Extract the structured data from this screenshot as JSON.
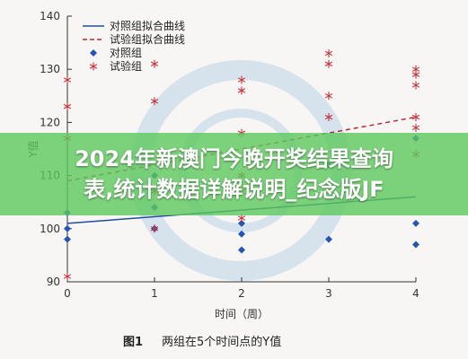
{
  "banner": {
    "line1": "2024年新澳门今晚开奖结果查询",
    "line2": "表,统计数据详解说明_纪念版JF"
  },
  "figure_caption": {
    "label": "图1",
    "text": "两组在5个时间点的Y值"
  },
  "chart_data": {
    "type": "scatter",
    "title": "",
    "xlabel": "时间（周）",
    "ylabel": "Y值",
    "xlim": [
      0,
      4
    ],
    "ylim": [
      90,
      140
    ],
    "x_ticks": [
      0,
      1,
      2,
      3,
      4
    ],
    "y_ticks": [
      90,
      100,
      110,
      120,
      130,
      140
    ],
    "grid": false,
    "legend_position": "top-left",
    "series": [
      {
        "name": "对照组拟合曲线",
        "kind": "line",
        "style": "solid",
        "color": "#1f4e9c",
        "x": [
          0,
          4
        ],
        "y": [
          101,
          106
        ]
      },
      {
        "name": "试验组拟合曲线",
        "kind": "line",
        "style": "dashed",
        "color": "#b22a35",
        "x": [
          0,
          4
        ],
        "y": [
          109,
          121
        ]
      },
      {
        "name": "对照组",
        "kind": "points",
        "marker": "diamond",
        "color": "#2456b0",
        "x": [
          0,
          0,
          0,
          1,
          1,
          1,
          2,
          2,
          2,
          3,
          3,
          4,
          4,
          4
        ],
        "y": [
          100,
          103,
          98,
          104,
          100,
          110,
          99,
          96,
          101,
          98,
          112,
          117,
          101,
          97
        ]
      },
      {
        "name": "试验组",
        "kind": "points",
        "marker": "asterisk",
        "color": "#c8323c",
        "x": [
          0,
          0,
          0,
          0,
          1,
          1,
          1,
          1,
          2,
          2,
          2,
          2,
          2,
          2,
          3,
          3,
          3,
          3,
          4,
          4,
          4,
          4,
          4,
          4
        ],
        "y": [
          128,
          123,
          117,
          91,
          131,
          124,
          107,
          100,
          128,
          126,
          118,
          110,
          107,
          102,
          133,
          131,
          125,
          121,
          130,
          129,
          127,
          121,
          119,
          114
        ]
      }
    ]
  }
}
